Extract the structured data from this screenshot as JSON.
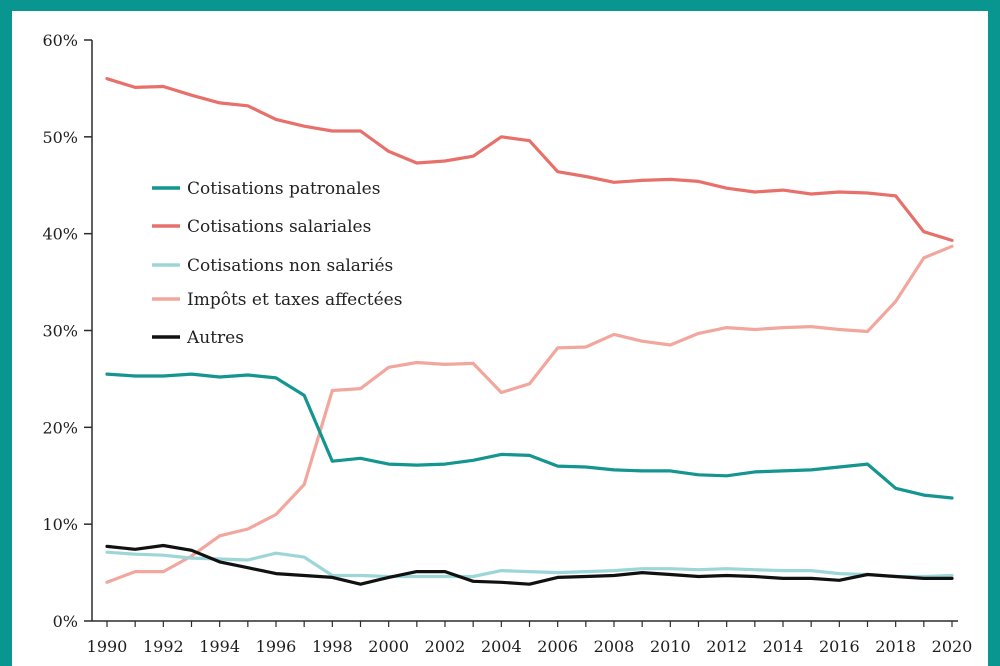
{
  "chart_data": {
    "type": "line",
    "title": "",
    "xlabel": "",
    "ylabel": "",
    "x": [
      1990,
      1991,
      1992,
      1993,
      1994,
      1995,
      1996,
      1997,
      1998,
      1999,
      2000,
      2001,
      2002,
      2003,
      2004,
      2005,
      2006,
      2007,
      2008,
      2009,
      2010,
      2011,
      2012,
      2013,
      2014,
      2015,
      2016,
      2017,
      2018,
      2019,
      2020
    ],
    "xlim": [
      1989.5,
      2020.5
    ],
    "ylim": [
      0,
      60
    ],
    "x_tick_labels": [
      "1990",
      "1992",
      "1994",
      "1996",
      "1998",
      "2000",
      "2002",
      "2004",
      "2006",
      "2008",
      "2010",
      "2012",
      "2014",
      "2016",
      "2018",
      "2020"
    ],
    "y_tick_labels": [
      "0%",
      "10%",
      "20%",
      "30%",
      "40%",
      "50%",
      "60%"
    ],
    "grid": false,
    "legend_position": "center-left",
    "series": [
      {
        "name": "Cotisations patronales",
        "color": "#14958f",
        "values": [
          25.5,
          25.3,
          25.3,
          25.5,
          25.2,
          25.4,
          25.1,
          23.3,
          16.5,
          16.8,
          16.2,
          16.1,
          16.2,
          16.6,
          17.2,
          17.1,
          16.0,
          15.9,
          15.6,
          15.5,
          15.5,
          15.1,
          15.0,
          15.4,
          15.5,
          15.6,
          15.9,
          16.2,
          13.7,
          13.0,
          12.7
        ]
      },
      {
        "name": "Cotisations salariales",
        "color": "#e8706b",
        "values": [
          56.0,
          55.1,
          55.2,
          54.3,
          53.5,
          53.2,
          51.8,
          51.1,
          50.6,
          50.6,
          48.5,
          47.3,
          47.5,
          48.0,
          50.0,
          49.6,
          46.4,
          45.9,
          45.3,
          45.5,
          45.6,
          45.4,
          44.7,
          44.3,
          44.5,
          44.1,
          44.3,
          44.2,
          43.9,
          40.2,
          39.3
        ]
      },
      {
        "name": "Cotisations non salariés",
        "color": "#9dd6d8",
        "values": [
          7.1,
          6.9,
          6.8,
          6.5,
          6.4,
          6.3,
          7.0,
          6.6,
          4.7,
          4.7,
          4.6,
          4.6,
          4.6,
          4.6,
          5.2,
          5.1,
          5.0,
          5.1,
          5.2,
          5.4,
          5.4,
          5.3,
          5.4,
          5.3,
          5.2,
          5.2,
          4.9,
          4.8,
          4.6,
          4.6,
          4.7
        ]
      },
      {
        "name": "Impôts et taxes affectées",
        "color": "#f2a79e",
        "values": [
          4.0,
          5.1,
          5.1,
          6.7,
          8.8,
          9.5,
          11.0,
          14.1,
          23.8,
          24.0,
          26.2,
          26.7,
          26.5,
          26.6,
          23.6,
          24.5,
          28.2,
          28.3,
          29.6,
          28.9,
          28.5,
          29.7,
          30.3,
          30.1,
          30.3,
          30.4,
          30.1,
          29.9,
          33.0,
          37.5,
          38.7
        ]
      },
      {
        "name": "Autres",
        "color": "#111111",
        "values": [
          7.7,
          7.4,
          7.8,
          7.3,
          6.1,
          5.5,
          4.9,
          4.7,
          4.5,
          3.8,
          4.5,
          5.1,
          5.1,
          4.1,
          4.0,
          3.8,
          4.5,
          4.6,
          4.7,
          5.0,
          4.8,
          4.6,
          4.7,
          4.6,
          4.4,
          4.4,
          4.2,
          4.8,
          4.6,
          4.4,
          4.4
        ]
      }
    ]
  }
}
